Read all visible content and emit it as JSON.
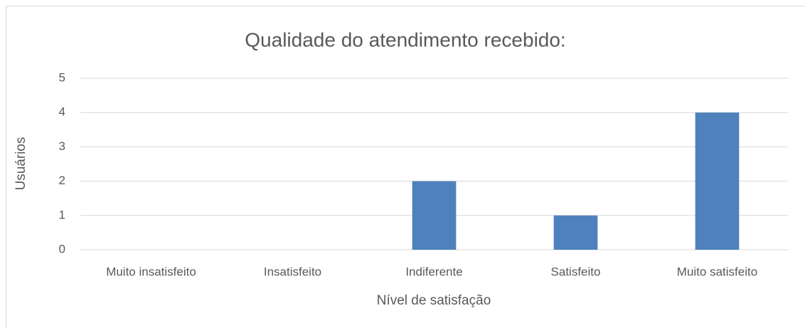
{
  "chart_data": {
    "type": "bar",
    "title": "Qualidade do atendimento recebido:",
    "x_label": "Nível de satisfação",
    "y_label": "Usuários",
    "categories": [
      "Muito insatisfeito",
      "Insatisfeito",
      "Indiferente",
      "Satisfeito",
      "Muito satisfeito"
    ],
    "values": [
      0,
      0,
      2,
      1,
      4
    ],
    "color": "#4f81bd",
    "ylim": [
      0,
      5
    ],
    "yticks": [
      0,
      1,
      2,
      3,
      4,
      5
    ],
    "grid": true
  }
}
